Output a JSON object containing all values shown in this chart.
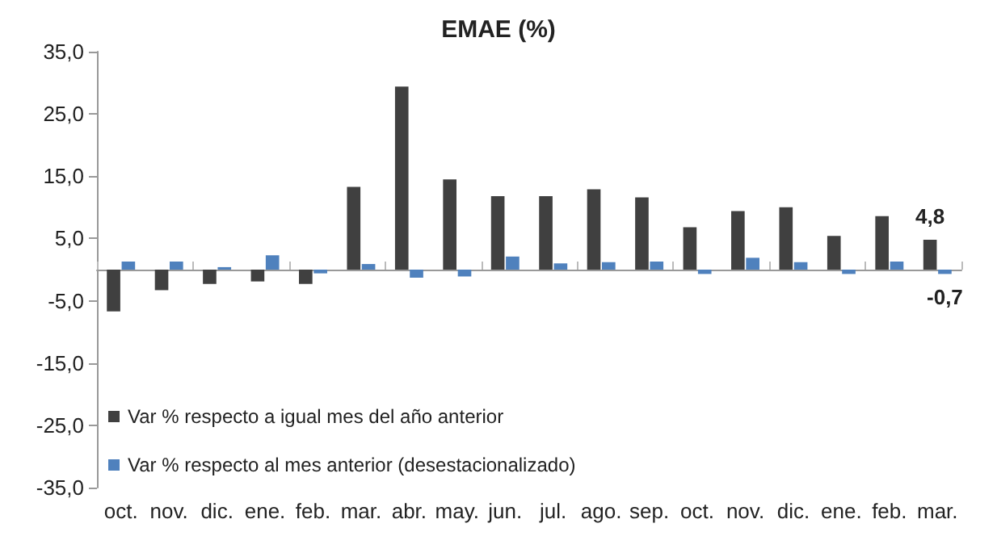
{
  "chart_data": {
    "type": "bar",
    "title": "EMAE (%)",
    "categories": [
      "oct.",
      "nov.",
      "dic.",
      "ene.",
      "feb.",
      "mar.",
      "abr.",
      "may.",
      "jun.",
      "jul.",
      "ago.",
      "sep.",
      "oct.",
      "nov.",
      "dic.",
      "ene.",
      "feb.",
      "mar."
    ],
    "series": [
      {
        "name": "Var % respecto a igual mes del año anterior",
        "color": "#404040",
        "values": [
          -6.7,
          -3.3,
          -2.3,
          -1.9,
          -2.3,
          13.3,
          29.4,
          14.5,
          11.8,
          11.8,
          12.9,
          11.6,
          6.8,
          9.4,
          10.0,
          5.4,
          8.6,
          4.8
        ],
        "value_labels": [
          null,
          null,
          null,
          null,
          null,
          null,
          null,
          null,
          null,
          null,
          null,
          null,
          null,
          null,
          null,
          null,
          null,
          "4,8"
        ]
      },
      {
        "name": "Var % respecto al mes anterior (desestacionalizado)",
        "color": "#4f81bd",
        "values": [
          1.3,
          1.3,
          0.4,
          2.3,
          -0.6,
          0.9,
          -1.3,
          -1.1,
          2.1,
          1.0,
          1.2,
          1.3,
          -0.7,
          1.9,
          1.2,
          -0.7,
          1.3,
          -0.7
        ],
        "value_labels": [
          null,
          null,
          null,
          null,
          null,
          null,
          null,
          null,
          null,
          null,
          null,
          null,
          null,
          null,
          null,
          null,
          null,
          "-0,7"
        ]
      }
    ],
    "ylim": [
      -35,
      35
    ],
    "yticks": [
      {
        "value": -35,
        "label": "-35,0"
      },
      {
        "value": -25,
        "label": "-25,0"
      },
      {
        "value": -15,
        "label": "-15,0"
      },
      {
        "value": -5,
        "label": "-5,0"
      },
      {
        "value": 5,
        "label": "5,0"
      },
      {
        "value": 15,
        "label": "15,0"
      },
      {
        "value": 25,
        "label": "25,0"
      },
      {
        "value": 35,
        "label": "35,0"
      }
    ],
    "grid": false,
    "legend": "bottom left"
  }
}
